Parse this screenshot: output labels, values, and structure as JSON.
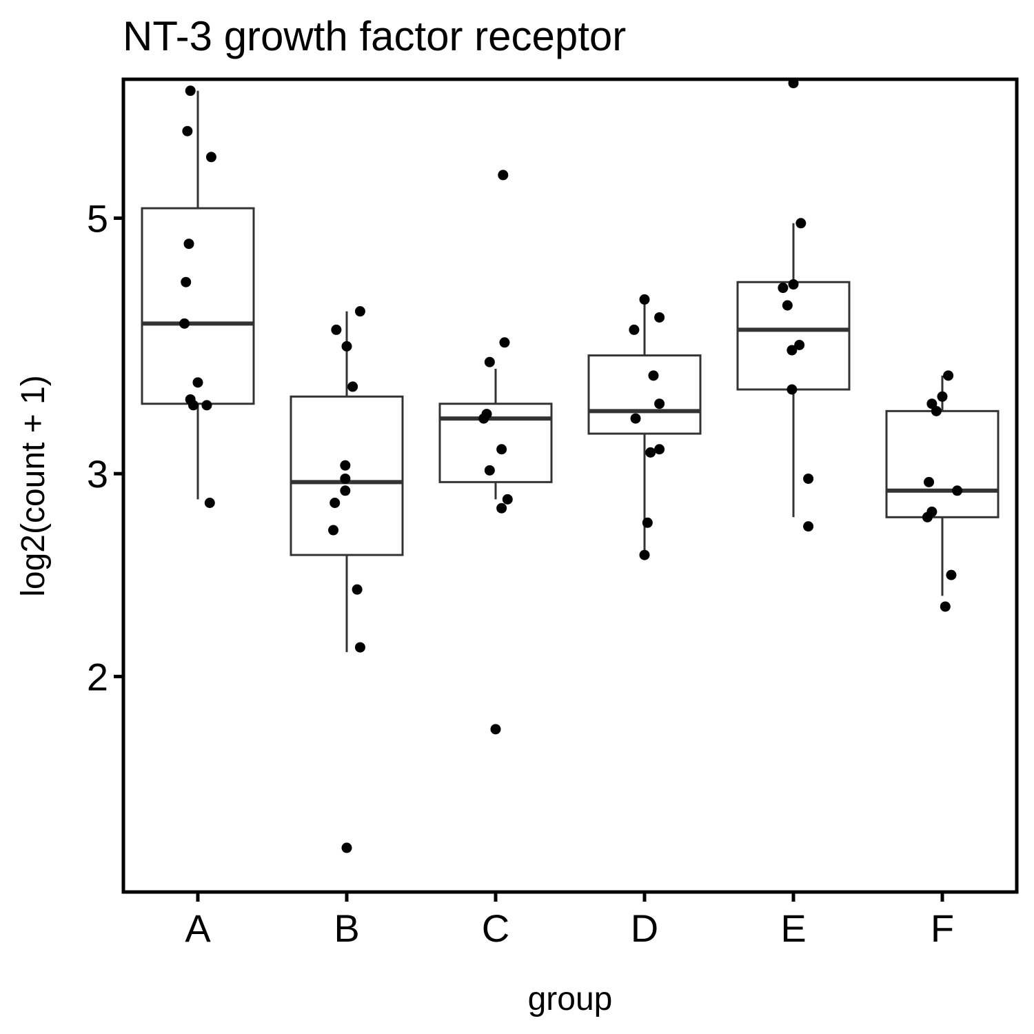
{
  "chart_data": {
    "type": "boxplot",
    "title": "NT-3 growth factor receptor",
    "xlabel": "group",
    "ylabel": "log2(count + 1)",
    "y_scale": "log2",
    "ylim": [
      1.3,
      6.6
    ],
    "y_ticks": [
      2,
      3,
      5
    ],
    "categories": [
      "A",
      "B",
      "C",
      "D",
      "E",
      "F"
    ],
    "boxes": [
      {
        "group": "A",
        "whisker_low": 2.85,
        "q1": 3.45,
        "median": 4.05,
        "q3": 5.1,
        "whisker_high": 6.45
      },
      {
        "group": "B",
        "whisker_low": 2.1,
        "q1": 2.55,
        "median": 2.95,
        "q3": 3.5,
        "whisker_high": 4.15
      },
      {
        "group": "C",
        "whisker_low": 2.85,
        "q1": 2.95,
        "median": 3.35,
        "q3": 3.45,
        "whisker_high": 3.7
      },
      {
        "group": "D",
        "whisker_low": 2.55,
        "q1": 3.25,
        "median": 3.4,
        "q3": 3.8,
        "whisker_high": 4.25
      },
      {
        "group": "E",
        "whisker_low": 2.75,
        "q1": 3.55,
        "median": 4.0,
        "q3": 4.4,
        "whisker_high": 4.95
      },
      {
        "group": "F",
        "whisker_low": 2.35,
        "q1": 2.75,
        "median": 2.9,
        "q3": 3.4,
        "whisker_high": 3.65
      }
    ],
    "points": [
      {
        "group": "A",
        "jitter": -0.05,
        "y": 6.45
      },
      {
        "group": "A",
        "jitter": -0.07,
        "y": 5.95
      },
      {
        "group": "A",
        "jitter": 0.09,
        "y": 5.65
      },
      {
        "group": "A",
        "jitter": -0.06,
        "y": 4.75
      },
      {
        "group": "A",
        "jitter": -0.08,
        "y": 4.4
      },
      {
        "group": "A",
        "jitter": -0.09,
        "y": 4.05
      },
      {
        "group": "A",
        "jitter": 0.0,
        "y": 3.6
      },
      {
        "group": "A",
        "jitter": -0.05,
        "y": 3.48
      },
      {
        "group": "A",
        "jitter": -0.03,
        "y": 3.44
      },
      {
        "group": "A",
        "jitter": 0.06,
        "y": 3.44
      },
      {
        "group": "A",
        "jitter": 0.08,
        "y": 2.83
      },
      {
        "group": "B",
        "jitter": 0.09,
        "y": 4.15
      },
      {
        "group": "B",
        "jitter": -0.07,
        "y": 4.0
      },
      {
        "group": "B",
        "jitter": 0.0,
        "y": 3.87
      },
      {
        "group": "B",
        "jitter": 0.04,
        "y": 3.57
      },
      {
        "group": "B",
        "jitter": -0.01,
        "y": 3.05
      },
      {
        "group": "B",
        "jitter": -0.01,
        "y": 2.97
      },
      {
        "group": "B",
        "jitter": -0.01,
        "y": 2.9
      },
      {
        "group": "B",
        "jitter": -0.08,
        "y": 2.83
      },
      {
        "group": "B",
        "jitter": -0.09,
        "y": 2.68
      },
      {
        "group": "B",
        "jitter": 0.07,
        "y": 2.38
      },
      {
        "group": "B",
        "jitter": 0.09,
        "y": 2.12
      },
      {
        "group": "B",
        "jitter": 0.0,
        "y": 1.42
      },
      {
        "group": "C",
        "jitter": 0.05,
        "y": 5.45
      },
      {
        "group": "C",
        "jitter": 0.06,
        "y": 3.9
      },
      {
        "group": "C",
        "jitter": -0.04,
        "y": 3.75
      },
      {
        "group": "C",
        "jitter": -0.06,
        "y": 3.38
      },
      {
        "group": "C",
        "jitter": -0.08,
        "y": 3.35
      },
      {
        "group": "C",
        "jitter": 0.04,
        "y": 3.15
      },
      {
        "group": "C",
        "jitter": -0.04,
        "y": 3.02
      },
      {
        "group": "C",
        "jitter": 0.08,
        "y": 2.85
      },
      {
        "group": "C",
        "jitter": 0.04,
        "y": 2.8
      },
      {
        "group": "C",
        "jitter": 0.0,
        "y": 1.8
      },
      {
        "group": "D",
        "jitter": 0.0,
        "y": 4.25
      },
      {
        "group": "D",
        "jitter": 0.1,
        "y": 4.1
      },
      {
        "group": "D",
        "jitter": -0.07,
        "y": 4.0
      },
      {
        "group": "D",
        "jitter": 0.06,
        "y": 3.65
      },
      {
        "group": "D",
        "jitter": 0.1,
        "y": 3.45
      },
      {
        "group": "D",
        "jitter": -0.06,
        "y": 3.35
      },
      {
        "group": "D",
        "jitter": 0.1,
        "y": 3.15
      },
      {
        "group": "D",
        "jitter": 0.04,
        "y": 3.13
      },
      {
        "group": "D",
        "jitter": 0.02,
        "y": 2.72
      },
      {
        "group": "D",
        "jitter": 0.0,
        "y": 2.55
      },
      {
        "group": "E",
        "jitter": 0.0,
        "y": 6.55
      },
      {
        "group": "E",
        "jitter": 0.05,
        "y": 4.95
      },
      {
        "group": "E",
        "jitter": -0.07,
        "y": 4.35
      },
      {
        "group": "E",
        "jitter": 0.0,
        "y": 4.38
      },
      {
        "group": "E",
        "jitter": -0.04,
        "y": 4.2
      },
      {
        "group": "E",
        "jitter": 0.04,
        "y": 3.88
      },
      {
        "group": "E",
        "jitter": -0.01,
        "y": 3.84
      },
      {
        "group": "E",
        "jitter": -0.01,
        "y": 3.55
      },
      {
        "group": "E",
        "jitter": 0.1,
        "y": 2.97
      },
      {
        "group": "E",
        "jitter": 0.1,
        "y": 2.7
      },
      {
        "group": "F",
        "jitter": 0.04,
        "y": 3.65
      },
      {
        "group": "F",
        "jitter": 0.0,
        "y": 3.5
      },
      {
        "group": "F",
        "jitter": -0.07,
        "y": 3.45
      },
      {
        "group": "F",
        "jitter": -0.04,
        "y": 3.4
      },
      {
        "group": "F",
        "jitter": -0.09,
        "y": 2.95
      },
      {
        "group": "F",
        "jitter": 0.1,
        "y": 2.9
      },
      {
        "group": "F",
        "jitter": -0.07,
        "y": 2.78
      },
      {
        "group": "F",
        "jitter": -0.1,
        "y": 2.75
      },
      {
        "group": "F",
        "jitter": 0.06,
        "y": 2.45
      },
      {
        "group": "F",
        "jitter": 0.02,
        "y": 2.3
      }
    ],
    "grid": false,
    "legend": "none",
    "colors": {
      "box_line": "#333333",
      "point": "#000000",
      "panel_border": "#000000"
    }
  }
}
